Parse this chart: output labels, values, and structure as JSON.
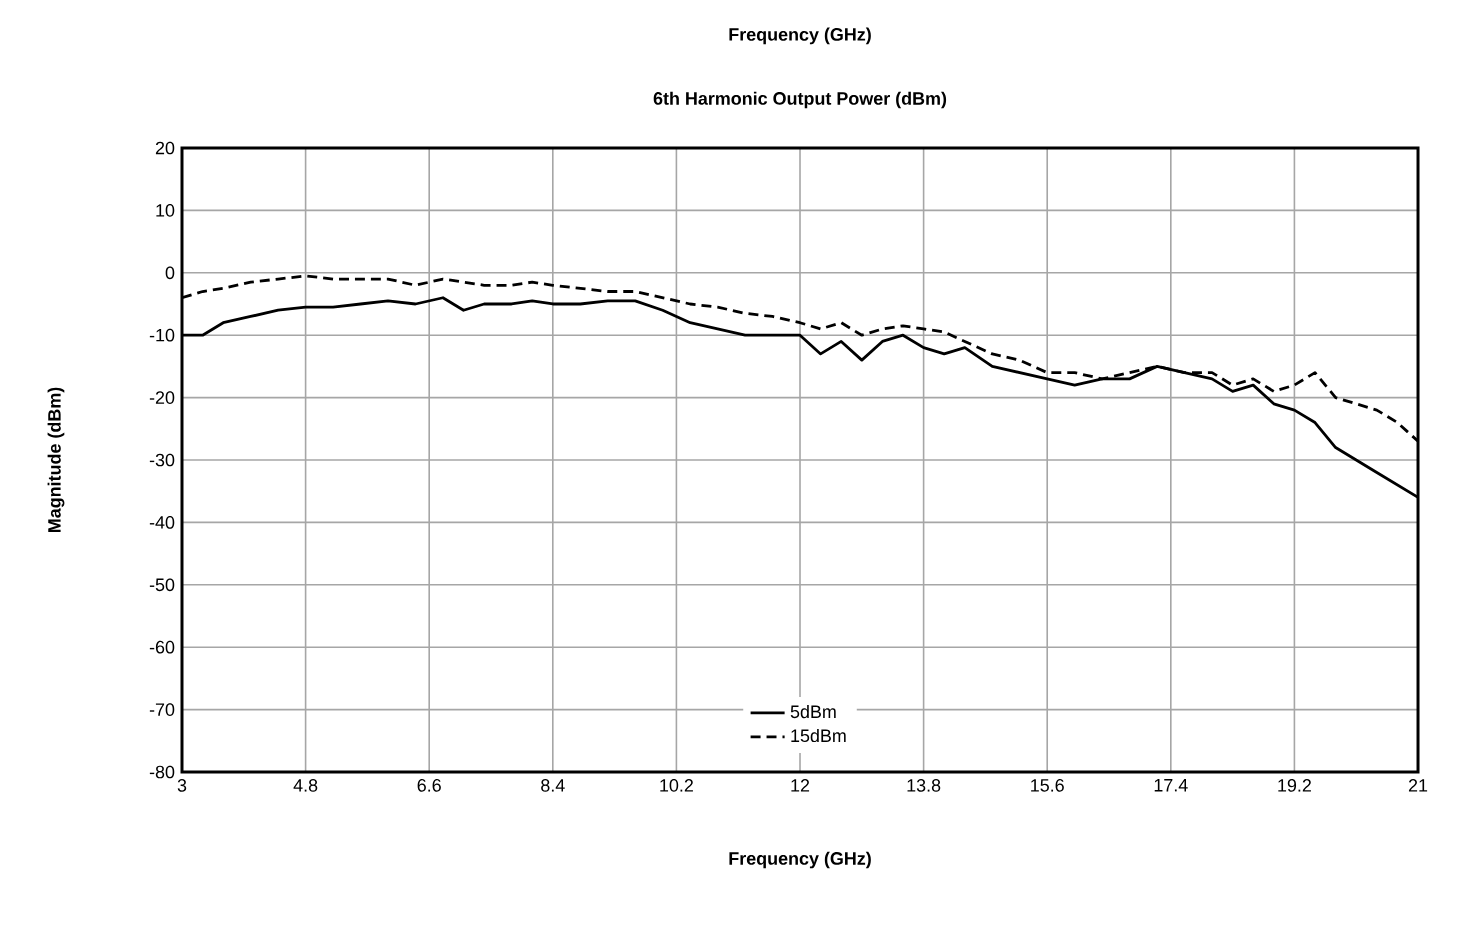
{
  "chart_data": {
    "type": "line",
    "title": "Frequency (GHz)",
    "subtitle": "6th Harmonic Output Power (dBm)",
    "xlabel": "Frequency (GHz)",
    "ylabel": "Magnitude (dBm)",
    "xlim": [
      3,
      21
    ],
    "xticks": [
      3,
      4.8,
      6.6,
      8.4,
      10.2,
      12,
      13.8,
      15.6,
      17.4,
      19.2,
      21
    ],
    "ylim": [
      -80,
      20
    ],
    "yticks": [
      -80,
      -70,
      -60,
      -50,
      -40,
      -30,
      -20,
      -10,
      0,
      10,
      20
    ],
    "grid": true,
    "legend": "bottom",
    "marker": "none",
    "series": [
      {
        "name": "5dBm",
        "color": "#000000",
        "line_style": "solid",
        "x": [
          3,
          3.3,
          3.6,
          4,
          4.4,
          4.8,
          5.2,
          5.6,
          6,
          6.4,
          6.8,
          7.1,
          7.4,
          7.8,
          8.1,
          8.4,
          8.8,
          9.2,
          9.6,
          10,
          10.4,
          10.8,
          11.2,
          11.6,
          12,
          12.3,
          12.6,
          12.9,
          13.2,
          13.5,
          13.8,
          14.1,
          14.4,
          14.8,
          15.2,
          15.6,
          16,
          16.4,
          16.8,
          17.2,
          17.6,
          18,
          18.3,
          18.6,
          18.9,
          19.2,
          19.5,
          19.8,
          20.1,
          20.4,
          20.7,
          21
        ],
        "values": [
          -10,
          -10,
          -8,
          -7,
          -6,
          -5.5,
          -5.5,
          -5,
          -4.5,
          -5,
          -4,
          -6,
          -5,
          -5,
          -4.5,
          -5,
          -5,
          -4.5,
          -4.5,
          -6,
          -8,
          -9,
          -10,
          -10,
          -10,
          -13,
          -11,
          -14,
          -11,
          -10,
          -12,
          -13,
          -12,
          -15,
          -16,
          -17,
          -18,
          -17,
          -17,
          -15,
          -16,
          -17,
          -19,
          -18,
          -21,
          -22,
          -24,
          -28,
          -30,
          -32,
          -34,
          -36
        ]
      },
      {
        "name": "15dBm",
        "color": "#000000",
        "line_style": "dashed",
        "x": [
          3,
          3.3,
          3.6,
          4,
          4.4,
          4.8,
          5.2,
          5.6,
          6,
          6.4,
          6.8,
          7.1,
          7.4,
          7.8,
          8.1,
          8.4,
          8.8,
          9.2,
          9.6,
          10,
          10.4,
          10.8,
          11.2,
          11.6,
          12,
          12.3,
          12.6,
          12.9,
          13.2,
          13.5,
          13.8,
          14.1,
          14.4,
          14.8,
          15.2,
          15.6,
          16,
          16.4,
          16.8,
          17.2,
          17.6,
          18,
          18.3,
          18.6,
          18.9,
          19.2,
          19.5,
          19.8,
          20.1,
          20.4,
          20.7,
          21
        ],
        "values": [
          -4,
          -3,
          -2.5,
          -1.5,
          -1,
          -0.5,
          -1,
          -1,
          -1,
          -2,
          -1,
          -1.5,
          -2,
          -2,
          -1.5,
          -2,
          -2.5,
          -3,
          -3,
          -4,
          -5,
          -5.5,
          -6.5,
          -7,
          -8,
          -9,
          -8,
          -10,
          -9,
          -8.5,
          -9,
          -9.5,
          -11,
          -13,
          -14,
          -16,
          -16,
          -17,
          -16,
          -15,
          -16,
          -16,
          -18,
          -17,
          -19,
          -18,
          -16,
          -20,
          -21,
          -22,
          -24,
          -27
        ]
      }
    ]
  }
}
